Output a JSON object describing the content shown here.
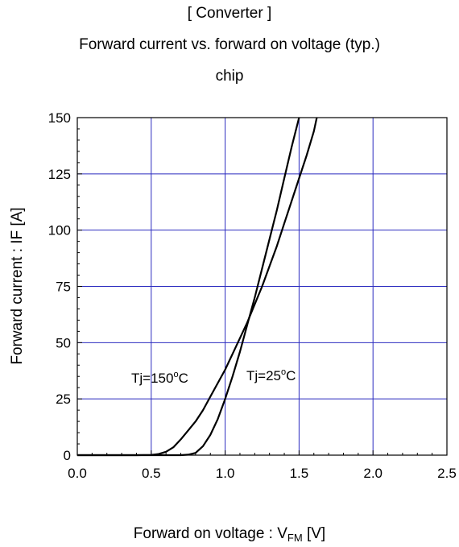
{
  "chart_data": {
    "type": "line",
    "title_lines": [
      "[ Converter ]",
      "Forward current  vs.  forward on voltage  (typ.)",
      "chip"
    ],
    "xlabel_main": "Forward on voltage : V",
    "xlabel_sub": "FM",
    "xlabel_unit": " [V]",
    "ylabel": "Forward current : IF [A]",
    "xlim": [
      0.0,
      2.5
    ],
    "ylim": [
      0,
      150
    ],
    "x_ticks": [
      "0.0",
      "0.5",
      "1.0",
      "1.5",
      "2.0",
      "2.5"
    ],
    "y_ticks": [
      "0",
      "25",
      "50",
      "75",
      "100",
      "125",
      "150"
    ],
    "grid": true,
    "grid_color": "#2b2bbf",
    "line_color": "#000000",
    "series": [
      {
        "name": "Tj=150°C",
        "x": [
          0.0,
          0.4,
          0.5,
          0.55,
          0.6,
          0.65,
          0.7,
          0.75,
          0.8,
          0.85,
          0.9,
          0.95,
          1.0,
          1.05,
          1.1,
          1.15,
          1.2,
          1.25,
          1.3,
          1.35,
          1.4,
          1.45,
          1.5,
          1.55,
          1.6,
          1.62
        ],
        "y": [
          0,
          0,
          0.1,
          0.5,
          1.5,
          3.5,
          7,
          11,
          15,
          20,
          26,
          32,
          38,
          45,
          52,
          59,
          67,
          75,
          84,
          93,
          103,
          113,
          123,
          133,
          144,
          150
        ]
      },
      {
        "name": "Tj=25°C",
        "x": [
          0.0,
          0.7,
          0.75,
          0.8,
          0.85,
          0.9,
          0.95,
          1.0,
          1.05,
          1.1,
          1.15,
          1.2,
          1.25,
          1.3,
          1.35,
          1.4,
          1.45,
          1.5
        ],
        "y": [
          0,
          0,
          0.2,
          1,
          4,
          9,
          16,
          25,
          35,
          46,
          58,
          70,
          83,
          96,
          109,
          123,
          137,
          150
        ]
      }
    ],
    "annotations": [
      {
        "text_main": "Tj=150",
        "text_sup": "o",
        "text_end": "C"
      },
      {
        "text_main": "Tj=25",
        "text_sup": "o",
        "text_end": "C"
      }
    ]
  }
}
